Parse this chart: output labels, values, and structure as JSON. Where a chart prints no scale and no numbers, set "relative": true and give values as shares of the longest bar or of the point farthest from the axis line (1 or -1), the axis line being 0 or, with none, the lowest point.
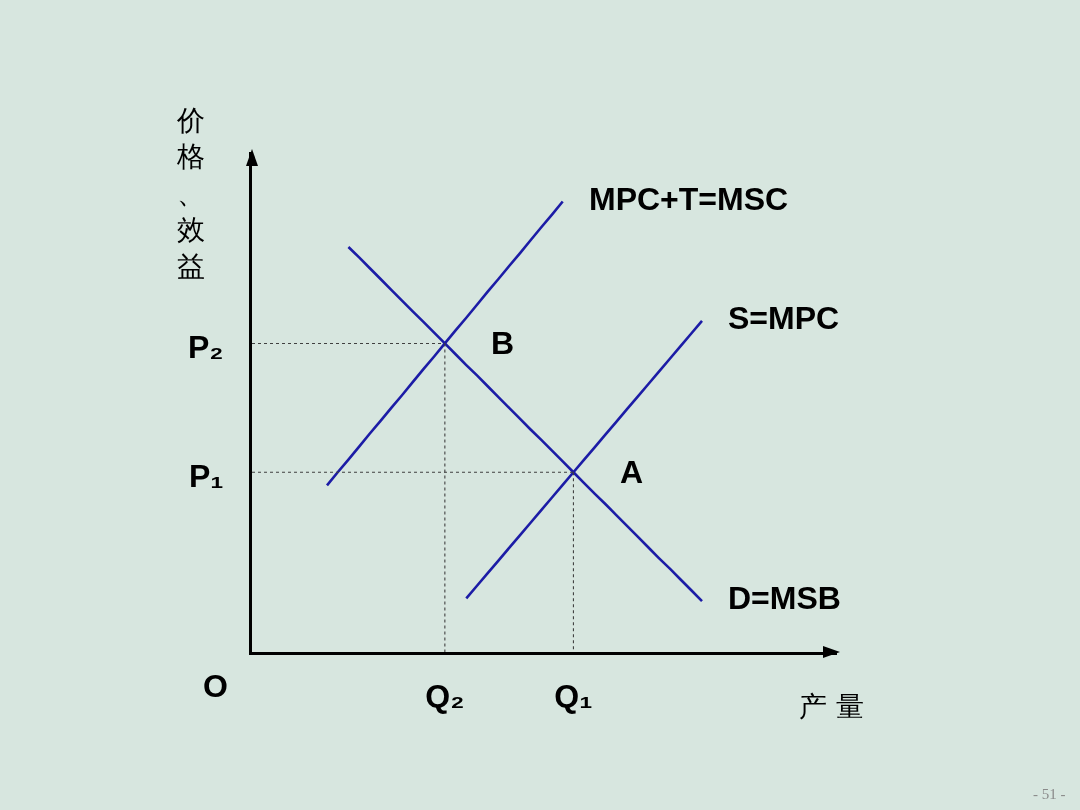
{
  "chart_data": {
    "type": "line",
    "relative": true,
    "xlabel": "产 量",
    "ylabel": "价格、效益",
    "tick_labels": "x",
    "categories": [
      null,
      null,
      null,
      null,
      null,
      null,
      null,
      null,
      null,
      null,
      null,
      null,
      null,
      null,
      null,
      null,
      null,
      null,
      "Q₂",
      null,
      null,
      null,
      null,
      null,
      null,
      null,
      null,
      null,
      null,
      null,
      "Q₁",
      null,
      null,
      null,
      null,
      null,
      null,
      null,
      null,
      null,
      null,
      null,
      null
    ],
    "series": [
      {
        "name": "MPC+T=MSC",
        "color": "#1c1ca6",
        "values": [
          null,
          null,
          null,
          null,
          null,
          null,
          null,
          0.37,
          0.399,
          0.427,
          0.456,
          0.485,
          0.513,
          0.542,
          0.57,
          0.599,
          0.628,
          0.656,
          0.685,
          0.714,
          0.742,
          0.771,
          0.8,
          0.828,
          0.857,
          0.885,
          0.914,
          0.943,
          0.971,
          1.0,
          null,
          null,
          null,
          null,
          null,
          null,
          null,
          null,
          null,
          null,
          null,
          null,
          null
        ]
      },
      {
        "name": "S=MPC",
        "color": "#1c1ca6",
        "values": [
          null,
          null,
          null,
          null,
          null,
          null,
          null,
          null,
          null,
          null,
          null,
          null,
          null,
          null,
          null,
          null,
          null,
          null,
          null,
          null,
          0.119,
          0.147,
          0.175,
          0.203,
          0.231,
          0.259,
          0.287,
          0.315,
          0.343,
          0.371,
          0.399,
          0.427,
          0.455,
          0.483,
          0.511,
          0.539,
          0.567,
          0.595,
          0.623,
          0.651,
          0.679,
          0.707,
          0.735
        ]
      },
      {
        "name": "D=MSB",
        "color": "#1c1ca6",
        "values": [
          null,
          null,
          null,
          null,
          null,
          null,
          null,
          null,
          null,
          0.899,
          0.876,
          0.852,
          0.828,
          0.804,
          0.78,
          0.756,
          0.733,
          0.709,
          0.685,
          0.661,
          0.637,
          0.614,
          0.59,
          0.566,
          0.542,
          0.518,
          0.494,
          0.471,
          0.447,
          0.423,
          0.399,
          0.375,
          0.351,
          0.328,
          0.304,
          0.28,
          0.256,
          0.232,
          0.208,
          0.185,
          0.161,
          0.137,
          0.113
        ]
      },
      {
        "name": "P₂",
        "color": "#404040",
        "line_style": "dotted",
        "values": [
          0.685,
          0.685,
          0.685,
          0.685,
          0.685,
          0.685,
          0.685,
          0.685,
          0.685,
          0.685,
          0.685,
          0.685,
          0.685,
          0.685,
          0.685,
          0.685,
          0.685,
          0.685,
          0.685,
          null,
          null,
          null,
          null,
          null,
          null,
          null,
          null,
          null,
          null,
          null,
          null,
          null,
          null,
          null,
          null,
          null,
          null,
          null,
          null,
          null,
          null,
          null,
          null
        ]
      },
      {
        "color": "#404040",
        "line_style": "dotted",
        "x": [
          "Q₂",
          "Q₂"
        ],
        "values": [
          0.685,
          0
        ]
      },
      {
        "name": "P₁",
        "color": "#404040",
        "line_style": "dotted",
        "values": [
          0.399,
          0.399,
          0.399,
          0.399,
          0.399,
          0.399,
          0.399,
          0.399,
          0.399,
          0.399,
          0.399,
          0.399,
          0.399,
          0.399,
          0.399,
          0.399,
          0.399,
          0.399,
          0.399,
          0.399,
          0.399,
          0.399,
          0.399,
          0.399,
          0.399,
          0.399,
          0.399,
          0.399,
          0.399,
          0.399,
          0.399,
          null,
          null,
          null,
          null,
          null,
          null,
          null,
          null,
          null,
          null,
          null,
          null
        ]
      },
      {
        "color": "#404040",
        "line_style": "dotted",
        "x": [
          "Q₁",
          "Q₁"
        ],
        "values": [
          0.399,
          0
        ]
      }
    ],
    "annotations": [
      {
        "text": "B",
        "x": "Q₂",
        "y": 0.685
      },
      {
        "text": "A",
        "x": "Q₁",
        "y": 0.399
      },
      "O",
      "- 51 -"
    ]
  }
}
